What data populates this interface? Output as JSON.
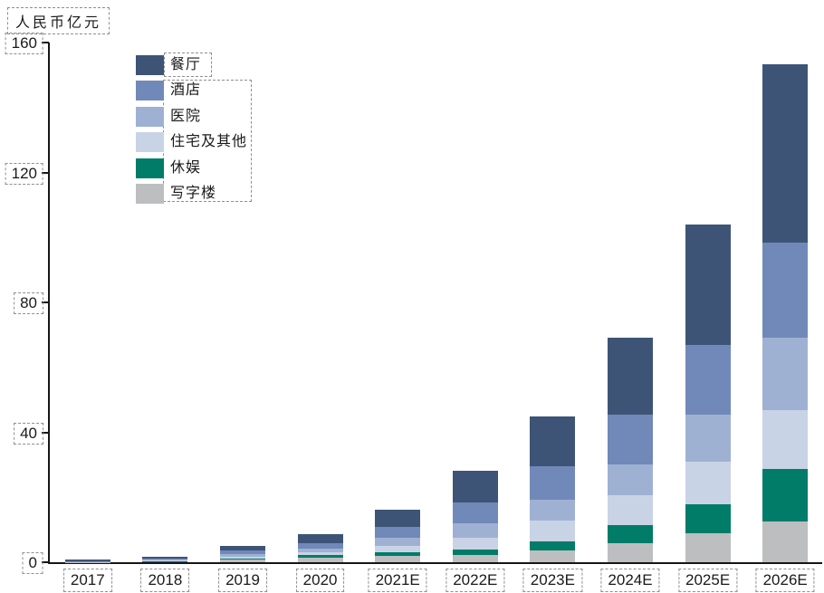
{
  "y_axis_title": "人民币亿元",
  "axis_color": "#161616",
  "annotation_dash_color": "#8f8f8f",
  "chart_data": {
    "type": "bar",
    "stacked": true,
    "title": "",
    "ylabel": "人民币亿元",
    "xlabel": "",
    "ylim": [
      0,
      160
    ],
    "yticks": [
      0,
      40,
      80,
      120,
      160
    ],
    "grid": false,
    "legend_position": "upper-left-inside",
    "stack_order": "legend order is top-of-stack first; 写字楼 is the bottom segment",
    "categories": [
      "2017",
      "2018",
      "2019",
      "2020",
      "2021E",
      "2022E",
      "2023E",
      "2024E",
      "2025E",
      "2026E"
    ],
    "series": [
      {
        "name": "餐厅",
        "color": "#3d5476",
        "values": [
          0.4,
          0.6,
          1.4,
          2.8,
          5.4,
          9.9,
          15.4,
          23.5,
          37.0,
          54.8
        ]
      },
      {
        "name": "酒店",
        "color": "#7189b8",
        "values": [
          0.1,
          0.4,
          1.1,
          1.6,
          3.5,
          6.4,
          10.4,
          15.5,
          21.4,
          29.3
        ]
      },
      {
        "name": "医院",
        "color": "#9fb1d3",
        "values": [
          0.1,
          0.2,
          0.8,
          1.1,
          2.3,
          4.3,
          6.4,
          9.5,
          14.6,
          22.3
        ]
      },
      {
        "name": "住宅及其他",
        "color": "#c9d3e6",
        "values": [
          0.1,
          0.2,
          0.6,
          1.0,
          2.1,
          3.6,
          6.4,
          9.1,
          13.0,
          18.3
        ]
      },
      {
        "name": "休娱",
        "color": "#007c68",
        "values": [
          0.0,
          0.1,
          0.3,
          0.7,
          1.1,
          1.9,
          2.8,
          5.6,
          9.1,
          16.1
        ]
      },
      {
        "name": "写字楼",
        "color": "#bdbebf",
        "values": [
          0.1,
          0.2,
          0.7,
          1.4,
          1.9,
          2.1,
          3.5,
          5.8,
          8.8,
          12.5
        ]
      }
    ],
    "totals": [
      0.8,
      1.7,
      4.9,
      8.6,
      16.3,
      28.2,
      44.9,
      69.0,
      103.9,
      153.3
    ]
  }
}
